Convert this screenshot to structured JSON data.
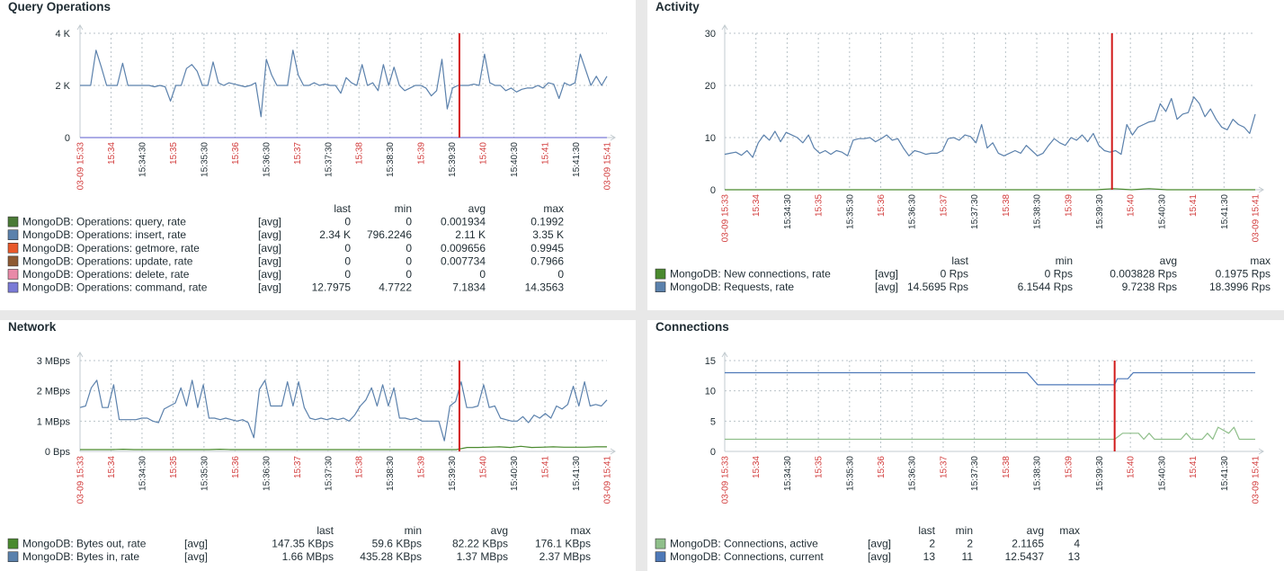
{
  "panels": [
    {
      "key": "query",
      "title": "Query Operations",
      "legend_headers": [
        "last",
        "min",
        "avg",
        "max"
      ],
      "legend": [
        {
          "name": "MongoDB: Operations: query, rate",
          "agg": "[avg]",
          "last": "0",
          "min": "0",
          "avg": "0.001934",
          "max": "0.1992",
          "color": "#4a7a36"
        },
        {
          "name": "MongoDB: Operations: insert, rate",
          "agg": "[avg]",
          "last": "2.34 K",
          "min": "796.2246",
          "avg": "2.11 K",
          "max": "3.35 K",
          "color": "#5b81ac"
        },
        {
          "name": "MongoDB: Operations: getmore, rate",
          "agg": "[avg]",
          "last": "0",
          "min": "0",
          "avg": "0.009656",
          "max": "0.9945",
          "color": "#e8582a"
        },
        {
          "name": "MongoDB: Operations: update, rate",
          "agg": "[avg]",
          "last": "0",
          "min": "0",
          "avg": "0.007734",
          "max": "0.7966",
          "color": "#8e5a32"
        },
        {
          "name": "MongoDB: Operations: delete, rate",
          "agg": "[avg]",
          "last": "0",
          "min": "0",
          "avg": "0",
          "max": "0",
          "color": "#e98aa8"
        },
        {
          "name": "MongoDB: Operations: command, rate",
          "agg": "[avg]",
          "last": "12.7975",
          "min": "4.7722",
          "avg": "7.1834",
          "max": "14.3563",
          "color": "#7a7ad6"
        }
      ]
    },
    {
      "key": "activity",
      "title": "Activity",
      "legend_headers": [
        "last",
        "min",
        "avg",
        "max"
      ],
      "legend": [
        {
          "name": "MongoDB: New connections, rate",
          "agg": "[avg]",
          "last": "0 Rps",
          "min": "0 Rps",
          "avg": "0.003828 Rps",
          "max": "0.1975 Rps",
          "color": "#4a8a2e"
        },
        {
          "name": "MongoDB: Requests, rate",
          "agg": "[avg]",
          "last": "14.5695 Rps",
          "min": "6.1544 Rps",
          "avg": "9.7238 Rps",
          "max": "18.3996 Rps",
          "color": "#5b81ac"
        }
      ]
    },
    {
      "key": "network",
      "title": "Network",
      "legend_headers": [
        "last",
        "min",
        "avg",
        "max"
      ],
      "legend": [
        {
          "name": "MongoDB: Bytes out, rate",
          "agg": "[avg]",
          "last": "147.35 KBps",
          "min": "59.6 KBps",
          "avg": "82.22 KBps",
          "max": "176.1 KBps",
          "color": "#4a8a2e"
        },
        {
          "name": "MongoDB: Bytes in, rate",
          "agg": "[avg]",
          "last": "1.66 MBps",
          "min": "435.28 KBps",
          "avg": "1.37 MBps",
          "max": "2.37 MBps",
          "color": "#5b81ac"
        }
      ]
    },
    {
      "key": "connections",
      "title": "Connections",
      "legend_headers": [
        "last",
        "min",
        "avg",
        "max"
      ],
      "legend": [
        {
          "name": "MongoDB: Connections, active",
          "agg": "[avg]",
          "last": "2",
          "min": "2",
          "avg": "2.1165",
          "max": "4",
          "color": "#8fbf8a"
        },
        {
          "name": "MongoDB: Connections, current",
          "agg": "[avg]",
          "last": "13",
          "min": "11",
          "avg": "12.5437",
          "max": "13",
          "color": "#4e79b8"
        }
      ]
    }
  ],
  "chart_data": [
    {
      "type": "line",
      "title": "Query Operations",
      "ylim": [
        0,
        4000
      ],
      "y_ticks": [
        "0",
        "2 K",
        "4 K"
      ],
      "x_ticks": [
        {
          "label": "03-09 15:33",
          "red": true
        },
        {
          "label": "15:34",
          "red": true
        },
        {
          "label": "15:34:30",
          "red": false
        },
        {
          "label": "15:35",
          "red": true
        },
        {
          "label": "15:35:30",
          "red": false
        },
        {
          "label": "15:36",
          "red": true
        },
        {
          "label": "15:36:30",
          "red": false
        },
        {
          "label": "15:37",
          "red": true
        },
        {
          "label": "15:37:30",
          "red": false
        },
        {
          "label": "15:38",
          "red": true
        },
        {
          "label": "15:38:30",
          "red": false
        },
        {
          "label": "15:39",
          "red": true
        },
        {
          "label": "15:39:30",
          "red": false
        },
        {
          "label": "15:40",
          "red": true
        },
        {
          "label": "15:40:30",
          "red": false
        },
        {
          "label": "15:41",
          "red": true
        },
        {
          "label": "15:41:30",
          "red": false
        },
        {
          "label": "03-09 15:41",
          "red": true
        }
      ],
      "marker_x": 0.72,
      "grid": true,
      "series": [
        {
          "name": "MongoDB: Operations: insert, rate",
          "color": "#5b81ac",
          "values": [
            2000,
            2000,
            2000,
            3350,
            2700,
            2000,
            2000,
            2000,
            2850,
            2000,
            2000,
            2000,
            2000,
            2000,
            1950,
            2000,
            1950,
            1400,
            2000,
            2000,
            2650,
            2800,
            2550,
            2000,
            2000,
            2900,
            2100,
            2000,
            2100,
            2050,
            2000,
            1950,
            2000,
            2100,
            800,
            3000,
            2400,
            2000,
            2000,
            2000,
            3350,
            2400,
            2000,
            2000,
            2100,
            2000,
            2050,
            2000,
            2000,
            1700,
            2300,
            2100,
            2000,
            2800,
            2000,
            2100,
            1800,
            2800,
            2000,
            2700,
            2000,
            1800,
            1900,
            2000,
            2000,
            1900,
            1600,
            1800,
            3000,
            1100,
            1900,
            2000,
            2000,
            2000,
            2050,
            2000,
            3200,
            2100,
            2000,
            2000,
            1800,
            1900,
            1750,
            1850,
            1900,
            1900,
            2000,
            1900,
            2100,
            2050,
            1500,
            2100,
            2000,
            2100,
            3200,
            2600,
            2000,
            2350,
            2000,
            2350
          ]
        },
        {
          "name": "MongoDB: Operations: query, rate",
          "color": "#7a7ad6",
          "values": [
            0,
            0,
            0,
            0,
            0,
            0,
            0,
            0,
            0,
            0,
            0,
            0,
            0,
            0,
            0,
            0,
            0,
            0,
            0,
            0,
            0
          ]
        }
      ]
    },
    {
      "type": "line",
      "title": "Activity",
      "ylim": [
        0,
        30
      ],
      "y_ticks": [
        "0",
        "10",
        "20",
        "30"
      ],
      "x_ticks": [
        {
          "label": "03-09 15:33",
          "red": true
        },
        {
          "label": "15:34",
          "red": true
        },
        {
          "label": "15:34:30",
          "red": false
        },
        {
          "label": "15:35",
          "red": true
        },
        {
          "label": "15:35:30",
          "red": false
        },
        {
          "label": "15:36",
          "red": true
        },
        {
          "label": "15:36:30",
          "red": false
        },
        {
          "label": "15:37",
          "red": true
        },
        {
          "label": "15:37:30",
          "red": false
        },
        {
          "label": "15:38",
          "red": true
        },
        {
          "label": "15:38:30",
          "red": false
        },
        {
          "label": "15:39",
          "red": true
        },
        {
          "label": "15:39:30",
          "red": false
        },
        {
          "label": "15:40",
          "red": true
        },
        {
          "label": "15:40:30",
          "red": false
        },
        {
          "label": "15:41",
          "red": true
        },
        {
          "label": "15:41:30",
          "red": false
        },
        {
          "label": "03-09 15:41",
          "red": true
        }
      ],
      "marker_x": 0.73,
      "grid": true,
      "series": [
        {
          "name": "MongoDB: Requests, rate",
          "color": "#5b81ac",
          "values": [
            6.8,
            7,
            7.2,
            6.6,
            7.5,
            6.2,
            9,
            10.5,
            9.5,
            11.2,
            9.2,
            11,
            10.5,
            10,
            9,
            10.5,
            8,
            7,
            7.5,
            6.8,
            7.5,
            7.2,
            6.5,
            9.5,
            9.8,
            9.8,
            10,
            9.2,
            9.8,
            10.5,
            9.5,
            9.8,
            8,
            6.5,
            7.5,
            7.2,
            6.8,
            7,
            7,
            7.5,
            9.8,
            10,
            9.5,
            10.5,
            10.2,
            9,
            12.5,
            8,
            9,
            7,
            6.5,
            7,
            7.5,
            7,
            8.5,
            7.5,
            6.5,
            7,
            8.5,
            9.8,
            9,
            8.5,
            10,
            9.5,
            10.5,
            9.2,
            10.8,
            8.5,
            7.5,
            7.2,
            7.5,
            6.8,
            12.5,
            10.5,
            12,
            12.5,
            13,
            13.2,
            16.5,
            15,
            17.5,
            13.5,
            14.5,
            14.8,
            17.8,
            16.5,
            14,
            15.5,
            13.5,
            12,
            11.5,
            13.5,
            12.5,
            12,
            10.8,
            14.5
          ]
        },
        {
          "name": "MongoDB: New connections, rate",
          "color": "#4a8a2e",
          "values": [
            0,
            0,
            0,
            0,
            0,
            0,
            0,
            0,
            0,
            0,
            0,
            0,
            0,
            0,
            0,
            0,
            0,
            0,
            0,
            0,
            0,
            0,
            0.2,
            0,
            0.2,
            0,
            0,
            0,
            0,
            0,
            0
          ]
        }
      ]
    },
    {
      "type": "line",
      "title": "Network",
      "ylim": [
        0,
        3
      ],
      "y_ticks": [
        "0 Bps",
        "1 MBps",
        "2 MBps",
        "3 MBps"
      ],
      "x_ticks": [
        {
          "label": "03-09 15:33",
          "red": true
        },
        {
          "label": "15:34",
          "red": true
        },
        {
          "label": "15:34:30",
          "red": false
        },
        {
          "label": "15:35",
          "red": true
        },
        {
          "label": "15:35:30",
          "red": false
        },
        {
          "label": "15:36",
          "red": true
        },
        {
          "label": "15:36:30",
          "red": false
        },
        {
          "label": "15:37",
          "red": true
        },
        {
          "label": "15:37:30",
          "red": false
        },
        {
          "label": "15:38",
          "red": true
        },
        {
          "label": "15:38:30",
          "red": false
        },
        {
          "label": "15:39",
          "red": true
        },
        {
          "label": "15:39:30",
          "red": false
        },
        {
          "label": "15:40",
          "red": true
        },
        {
          "label": "15:40:30",
          "red": false
        },
        {
          "label": "15:41",
          "red": true
        },
        {
          "label": "15:41:30",
          "red": false
        },
        {
          "label": "03-09 15:41",
          "red": true
        }
      ],
      "marker_x": 0.72,
      "grid": true,
      "series": [
        {
          "name": "MongoDB: Bytes in, rate",
          "color": "#5b81ac",
          "values": [
            1.45,
            1.5,
            2.1,
            2.35,
            1.45,
            1.45,
            2.2,
            1.05,
            1.05,
            1.05,
            1.05,
            1.1,
            1.1,
            1,
            0.95,
            1.4,
            1.5,
            1.6,
            2.1,
            1.5,
            2.35,
            1.45,
            2.2,
            1.1,
            1.1,
            1.05,
            1.1,
            1.05,
            1,
            1.05,
            0.95,
            0.45,
            2.05,
            2.35,
            1.5,
            1.5,
            1.5,
            2.3,
            1.5,
            2.3,
            1.45,
            1.1,
            1.05,
            1.1,
            1.05,
            1.1,
            1.05,
            1.1,
            1,
            1.2,
            1.5,
            1.7,
            2.1,
            1.5,
            2.2,
            1.5,
            2.1,
            1.1,
            1.1,
            1.05,
            1.1,
            1,
            1,
            1,
            1,
            0.35,
            1.5,
            1.65,
            2.3,
            1.45,
            1.45,
            1.5,
            2.2,
            1.45,
            1.5,
            1.1,
            1.05,
            1,
            1,
            1.15,
            0.95,
            1.2,
            1.1,
            1.25,
            1.1,
            1.5,
            1.4,
            1.55,
            2.15,
            1.5,
            2.3,
            1.5,
            1.55,
            1.5,
            1.7
          ]
        },
        {
          "name": "MongoDB: Bytes out, rate",
          "color": "#4a8a2e",
          "values": [
            0.06,
            0.06,
            0.06,
            0.06,
            0.07,
            0.06,
            0.06,
            0.06,
            0.06,
            0.06,
            0.06,
            0.06,
            0.06,
            0.07,
            0.06,
            0.06,
            0.06,
            0.06,
            0.06,
            0.06,
            0.06,
            0.06,
            0.06,
            0.06,
            0.06,
            0.06,
            0.06,
            0.06,
            0.06,
            0.06,
            0.06,
            0.06,
            0.06,
            0.06,
            0.06,
            0.06,
            0.13,
            0.13,
            0.14,
            0.15,
            0.13,
            0.17,
            0.13,
            0.14,
            0.15,
            0.14,
            0.14,
            0.14,
            0.15,
            0.15
          ]
        }
      ]
    },
    {
      "type": "line",
      "title": "Connections",
      "ylim": [
        0,
        15
      ],
      "y_ticks": [
        "0",
        "5",
        "10",
        "15"
      ],
      "x_ticks": [
        {
          "label": "03-09 15:33",
          "red": true
        },
        {
          "label": "15:34",
          "red": true
        },
        {
          "label": "15:34:30",
          "red": false
        },
        {
          "label": "15:35",
          "red": true
        },
        {
          "label": "15:35:30",
          "red": false
        },
        {
          "label": "15:36",
          "red": true
        },
        {
          "label": "15:36:30",
          "red": false
        },
        {
          "label": "15:37",
          "red": true
        },
        {
          "label": "15:37:30",
          "red": false
        },
        {
          "label": "15:38",
          "red": true
        },
        {
          "label": "15:38:30",
          "red": false
        },
        {
          "label": "15:39",
          "red": true
        },
        {
          "label": "15:39:30",
          "red": false
        },
        {
          "label": "15:40",
          "red": true
        },
        {
          "label": "15:40:30",
          "red": false
        },
        {
          "label": "15:41",
          "red": true
        },
        {
          "label": "15:41:30",
          "red": false
        },
        {
          "label": "03-09 15:41",
          "red": true
        }
      ],
      "marker_x": 0.735,
      "grid": true,
      "series": [
        {
          "name": "MongoDB: Connections, current",
          "color": "#4e79b8",
          "step": true,
          "points": [
            [
              0,
              13
            ],
            [
              0.57,
              13
            ],
            [
              0.59,
              11
            ],
            [
              0.735,
              11
            ],
            [
              0.74,
              12
            ],
            [
              0.76,
              12
            ],
            [
              0.77,
              13
            ],
            [
              1,
              13
            ]
          ]
        },
        {
          "name": "MongoDB: Connections, active",
          "color": "#8fbf8a",
          "step": true,
          "points": [
            [
              0,
              2
            ],
            [
              0.735,
              2
            ],
            [
              0.75,
              3
            ],
            [
              0.78,
              3
            ],
            [
              0.79,
              2
            ],
            [
              0.8,
              3
            ],
            [
              0.81,
              2
            ],
            [
              0.86,
              2
            ],
            [
              0.87,
              3
            ],
            [
              0.88,
              2
            ],
            [
              0.9,
              2
            ],
            [
              0.91,
              3
            ],
            [
              0.92,
              2
            ],
            [
              0.93,
              4
            ],
            [
              0.95,
              3
            ],
            [
              0.96,
              4
            ],
            [
              0.97,
              2
            ],
            [
              1,
              2
            ]
          ]
        }
      ]
    }
  ]
}
